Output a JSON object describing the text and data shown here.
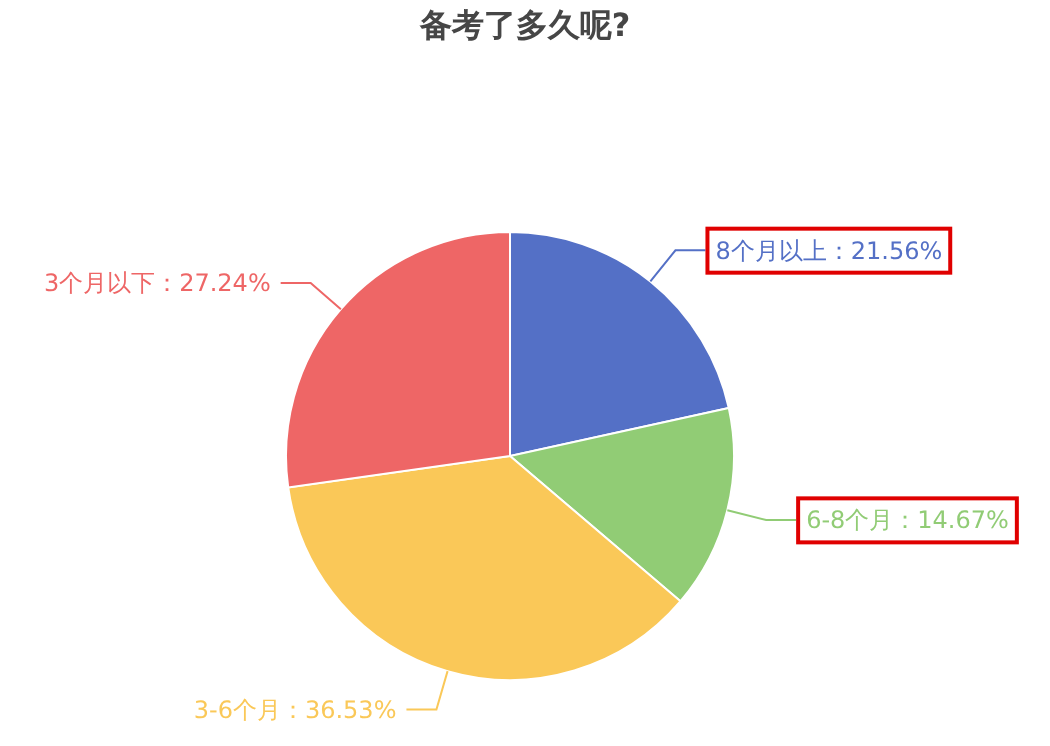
{
  "chart_data": {
    "type": "pie",
    "title": "备考了多久呢?",
    "categories": [
      "8个月以上",
      "6-8个月",
      "3-6个月",
      "3个月以下"
    ],
    "values": [
      21.56,
      14.67,
      36.53,
      27.24
    ],
    "colors": [
      "#5470c6",
      "#91cc75",
      "#fac858",
      "#ee6666"
    ],
    "value_labels": [
      "：21.56%",
      "：14.67%",
      "：36.53%",
      "：27.24%"
    ]
  }
}
